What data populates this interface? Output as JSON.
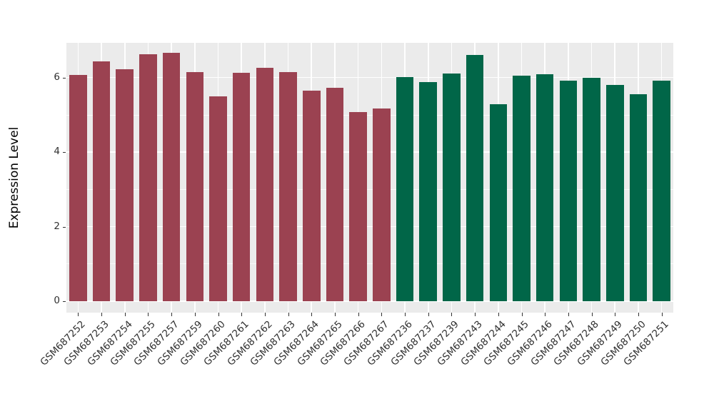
{
  "chart_data": {
    "type": "bar",
    "title": "",
    "xlabel": "",
    "ylabel": "Expression Level",
    "ylim": [
      0,
      6.99
    ],
    "yticks": [
      0,
      2,
      4,
      6
    ],
    "yminorticks": [
      1,
      3,
      5
    ],
    "grid": "on",
    "legend": "none",
    "panel_background": "#EBEBEB",
    "gridline_color": "#FFFFFF",
    "tick_label_color": "#303030",
    "axis_title_color": "#000000",
    "group_colors": {
      "groupA": "#9B4251",
      "groupB": "#016648"
    },
    "categories": [
      "GSM687252",
      "GSM687253",
      "GSM687254",
      "GSM687255",
      "GSM687257",
      "GSM687259",
      "GSM687260",
      "GSM687261",
      "GSM687262",
      "GSM687263",
      "GSM687264",
      "GSM687265",
      "GSM687266",
      "GSM687267",
      "GSM687236",
      "GSM687237",
      "GSM687239",
      "GSM687243",
      "GSM687244",
      "GSM687245",
      "GSM687246",
      "GSM687247",
      "GSM687248",
      "GSM687249",
      "GSM687250",
      "GSM687251"
    ],
    "values": [
      6.08,
      6.43,
      6.22,
      6.62,
      6.66,
      6.14,
      5.5,
      6.13,
      6.27,
      6.15,
      5.66,
      5.72,
      5.08,
      5.18,
      6.02,
      5.88,
      6.11,
      6.6,
      5.28,
      6.06,
      6.09,
      5.91,
      5.99,
      5.81,
      5.56,
      5.92
    ],
    "groups": [
      "groupA",
      "groupA",
      "groupA",
      "groupA",
      "groupA",
      "groupA",
      "groupA",
      "groupA",
      "groupA",
      "groupA",
      "groupA",
      "groupA",
      "groupA",
      "groupA",
      "groupB",
      "groupB",
      "groupB",
      "groupB",
      "groupB",
      "groupB",
      "groupB",
      "groupB",
      "groupB",
      "groupB",
      "groupB",
      "groupB"
    ]
  }
}
